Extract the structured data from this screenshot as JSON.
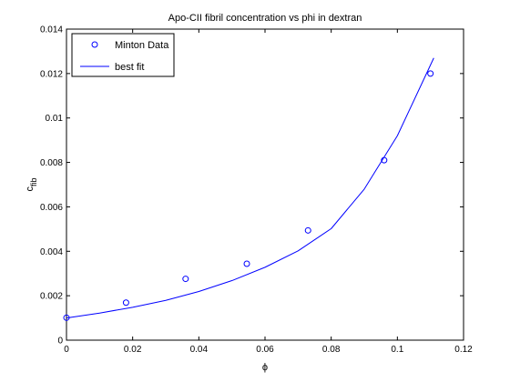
{
  "chart_data": {
    "type": "scatter",
    "title": "Apo-CII fibril concentration vs phi in dextran",
    "xlabel": "ϕ",
    "ylabel_main": "c",
    "ylabel_sub": "fib",
    "xlim": [
      0,
      0.12
    ],
    "ylim": [
      0,
      0.014
    ],
    "xticks": [
      0,
      0.02,
      0.04,
      0.06,
      0.08,
      0.1,
      0.12
    ],
    "xtick_labels": [
      "0",
      "0.02",
      "0.04",
      "0.06",
      "0.08",
      "0.1",
      "0.12"
    ],
    "yticks": [
      0,
      0.002,
      0.004,
      0.006,
      0.008,
      0.01,
      0.012,
      0.014
    ],
    "ytick_labels": [
      "0",
      "0.002",
      "0.004",
      "0.006",
      "0.008",
      "0.01",
      "0.012",
      "0.014"
    ],
    "grid": false,
    "legend_position": "top-left",
    "series": [
      {
        "name": "Minton Data",
        "style": "markers",
        "marker": "open-circle",
        "color": "#0000ff",
        "x": [
          0.0,
          0.018,
          0.036,
          0.0545,
          0.073,
          0.096,
          0.11
        ],
        "y": [
          0.00101,
          0.00169,
          0.00276,
          0.00344,
          0.00494,
          0.0081,
          0.012
        ]
      },
      {
        "name": "best fit",
        "style": "line",
        "color": "#0000ff",
        "x": [
          0.0,
          0.01,
          0.02,
          0.03,
          0.04,
          0.05,
          0.06,
          0.07,
          0.08,
          0.09,
          0.1,
          0.111
        ],
        "y": [
          0.001,
          0.00122,
          0.00148,
          0.00179,
          0.00219,
          0.00268,
          0.00328,
          0.00402,
          0.00502,
          0.0068,
          0.0092,
          0.0127
        ]
      }
    ]
  }
}
